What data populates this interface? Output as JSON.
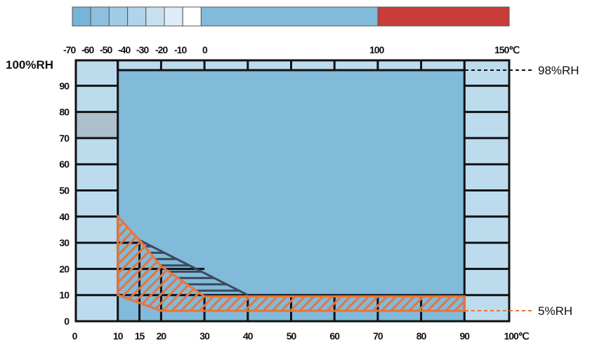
{
  "colors": {
    "outer_cell": "#bcdcee",
    "inner_area": "#82bad9",
    "gray_cell": "#aebfcc",
    "hatch_orange": "#e8743b",
    "hatch_dark": "#3a4a5c",
    "grid": "#111111",
    "top_bar_cells": [
      "#77b4d8",
      "#8cc0de",
      "#a0cbe4",
      "#b0d4e9",
      "#c6e0ef",
      "#deecf5",
      "#ffffff"
    ],
    "top_bar_main": "#82bad9",
    "top_bar_hot": "#c83c3a"
  },
  "top_scale": {
    "labels": [
      "-70",
      "-60",
      "-50",
      "-40",
      "-30",
      "-20",
      "-10",
      "0",
      "100",
      "150℃"
    ]
  },
  "y_axis": {
    "labels": [
      "100%RH",
      "90",
      "80",
      "70",
      "60",
      "50",
      "40",
      "30",
      "20",
      "10",
      "0"
    ]
  },
  "x_axis": {
    "labels": [
      "0",
      "10",
      "15",
      "20",
      "30",
      "40",
      "50",
      "60",
      "70",
      "80",
      "90",
      "100℃"
    ],
    "values": [
      0,
      10,
      15,
      20,
      30,
      40,
      50,
      60,
      70,
      80,
      90,
      100
    ]
  },
  "annotations": {
    "upper_limit": "98%RH",
    "lower_limit": "5%RH"
  },
  "regions": {
    "main_range": {
      "temp": [
        10,
        90
      ],
      "humidity": [
        0,
        98
      ]
    },
    "gray_cell": {
      "temp": [
        0,
        10
      ],
      "humidity": [
        70,
        80
      ]
    },
    "orange_hatch": [
      [
        10,
        40
      ],
      [
        15,
        31
      ],
      [
        20,
        21
      ],
      [
        30,
        9.5
      ],
      [
        90,
        9.5
      ],
      [
        90,
        4
      ],
      [
        20,
        4
      ],
      [
        10,
        10
      ]
    ],
    "dark_hatch": [
      [
        15,
        31
      ],
      [
        40,
        10
      ],
      [
        30,
        10
      ],
      [
        20,
        21
      ]
    ]
  }
}
